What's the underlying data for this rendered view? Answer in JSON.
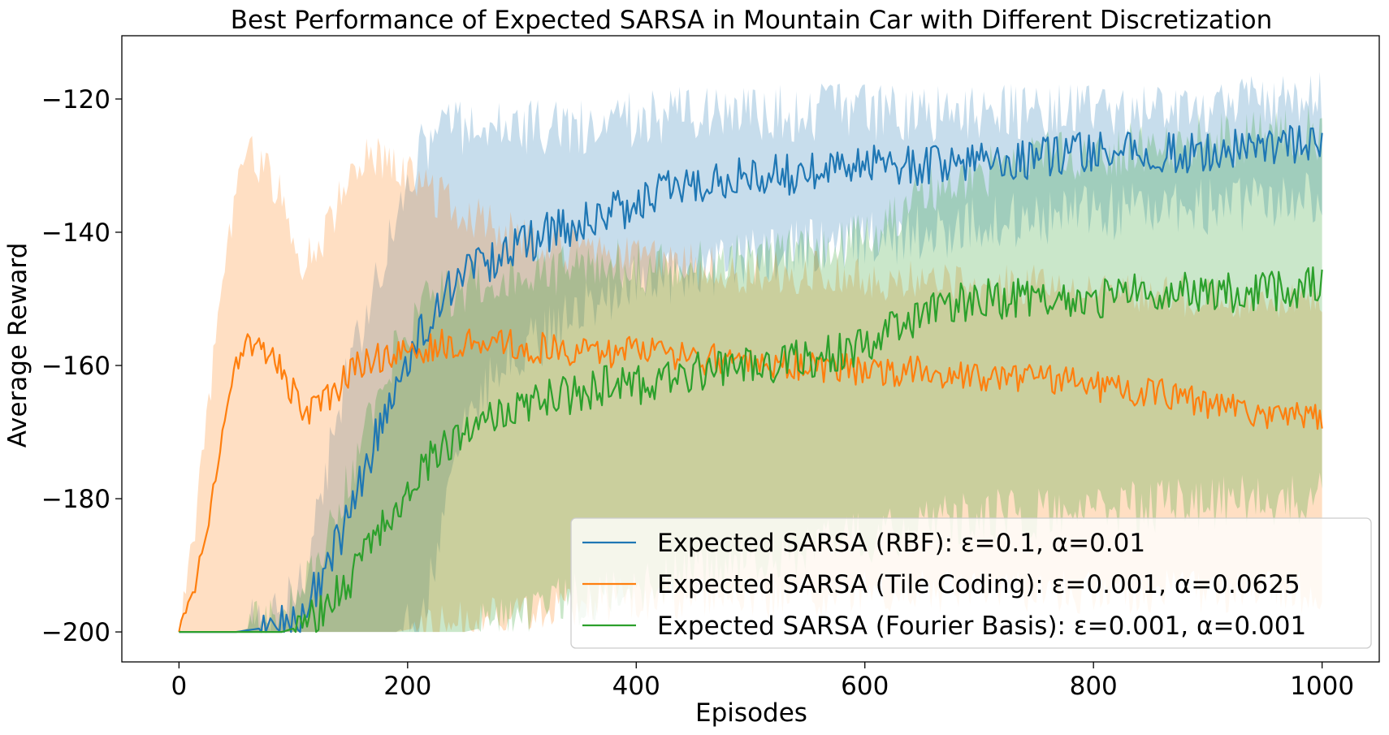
{
  "chart_data": {
    "type": "line",
    "title": "Best Performance of Expected SARSA in Mountain Car with Different Discretization",
    "xlabel": "Episodes",
    "ylabel": "Average Reward",
    "xlim": [
      -50,
      1050
    ],
    "ylim": [
      -204.5,
      -110.5
    ],
    "xticks": [
      0,
      200,
      400,
      600,
      800,
      1000
    ],
    "yticks": [
      -200,
      -180,
      -160,
      -140,
      -120
    ],
    "xtick_labels": [
      "0",
      "200",
      "400",
      "600",
      "800",
      "1000"
    ],
    "ytick_labels": [
      "−200",
      "−180",
      "−160",
      "−140",
      "−120"
    ],
    "grid": false,
    "legend_position": "lower-right",
    "series": [
      {
        "name": "Expected SARSA (RBF): ε=0.1, α=0.01",
        "color": "#1f77b4",
        "band_color": "#1f77b4",
        "x": [
          0,
          50,
          90,
          110,
          130,
          150,
          170,
          190,
          210,
          230,
          250,
          275,
          300,
          325,
          350,
          375,
          400,
          425,
          450,
          475,
          500,
          550,
          600,
          650,
          700,
          750,
          800,
          850,
          900,
          950,
          1000
        ],
        "y": [
          -200,
          -200,
          -199,
          -197,
          -190,
          -182,
          -172,
          -162,
          -156,
          -150,
          -146,
          -144,
          -142,
          -140,
          -139,
          -137,
          -136,
          -134,
          -133,
          -132,
          -132,
          -131,
          -130,
          -130,
          -129,
          -129,
          -128,
          -128,
          -128,
          -127,
          -126
        ],
        "band_low": [
          -200,
          -200,
          -200,
          -200,
          -200,
          -200,
          -200,
          -200,
          -198,
          -185,
          -170,
          -162,
          -158,
          -155,
          -152,
          -150,
          -148,
          -147,
          -146,
          -145,
          -144,
          -142,
          -141,
          -140,
          -139,
          -138,
          -137,
          -137,
          -136,
          -136,
          -135
        ],
        "band_high": [
          -200,
          -200,
          -198,
          -190,
          -175,
          -160,
          -148,
          -138,
          -128,
          -125,
          -124,
          -124,
          -124,
          -124,
          -124,
          -123,
          -123,
          -123,
          -122,
          -122,
          -122,
          -122,
          -122,
          -122,
          -122,
          -122,
          -122,
          -122,
          -121,
          -121,
          -120
        ],
        "noise": 3.2
      },
      {
        "name": "Expected SARSA (Tile Coding): ε=0.001, α=0.0625",
        "color": "#ff7f0e",
        "band_color": "#ff7f0e",
        "x": [
          0,
          10,
          20,
          30,
          40,
          50,
          60,
          75,
          90,
          110,
          130,
          150,
          170,
          190,
          220,
          260,
          300,
          350,
          400,
          450,
          500,
          550,
          600,
          650,
          700,
          750,
          800,
          850,
          900,
          950,
          1000
        ],
        "y": [
          -200,
          -196,
          -188,
          -178,
          -167,
          -161,
          -157,
          -158,
          -161,
          -167,
          -165,
          -161,
          -159,
          -158,
          -157,
          -156,
          -157,
          -158,
          -158,
          -159,
          -159,
          -160,
          -161,
          -161,
          -162,
          -162,
          -163,
          -164,
          -166,
          -167,
          -168
        ],
        "band_low": [
          -200,
          -200,
          -200,
          -200,
          -200,
          -200,
          -200,
          -200,
          -200,
          -200,
          -200,
          -200,
          -200,
          -200,
          -199,
          -198,
          -197,
          -196,
          -195,
          -195,
          -195,
          -195,
          -194,
          -194,
          -194,
          -194,
          -194,
          -194,
          -194,
          -194,
          -194
        ],
        "band_high": [
          -200,
          -190,
          -175,
          -160,
          -145,
          -135,
          -128,
          -130,
          -135,
          -145,
          -140,
          -130,
          -128,
          -130,
          -134,
          -138,
          -141,
          -143,
          -144,
          -145,
          -146,
          -146,
          -147,
          -147,
          -148,
          -148,
          -149,
          -149,
          -150,
          -150,
          -150
        ],
        "noise": 2.4
      },
      {
        "name": "Expected SARSA (Fourier Basis): ε=0.001, α=0.001",
        "color": "#2ca02c",
        "band_color": "#2ca02c",
        "x": [
          0,
          50,
          90,
          110,
          130,
          150,
          170,
          190,
          210,
          230,
          250,
          275,
          300,
          325,
          350,
          375,
          400,
          425,
          450,
          475,
          500,
          550,
          600,
          650,
          700,
          750,
          800,
          850,
          900,
          950,
          1000
        ],
        "y": [
          -200,
          -200,
          -200,
          -199,
          -196,
          -192,
          -186,
          -181,
          -176,
          -172,
          -170,
          -167,
          -166,
          -165,
          -164,
          -163,
          -163,
          -162,
          -161,
          -160,
          -160,
          -159,
          -157,
          -152,
          -150,
          -150,
          -150,
          -149,
          -149,
          -149,
          -148
        ],
        "band_low": [
          -200,
          -200,
          -200,
          -200,
          -200,
          -200,
          -200,
          -200,
          -200,
          -200,
          -200,
          -199,
          -198,
          -196,
          -195,
          -194,
          -193,
          -192,
          -191,
          -190,
          -189,
          -188,
          -186,
          -184,
          -183,
          -182,
          -182,
          -181,
          -181,
          -180,
          -180
        ],
        "band_high": [
          -200,
          -200,
          -198,
          -194,
          -186,
          -176,
          -166,
          -158,
          -152,
          -149,
          -148,
          -147,
          -146,
          -146,
          -146,
          -145,
          -145,
          -145,
          -145,
          -144,
          -144,
          -143,
          -141,
          -135,
          -131,
          -129,
          -128,
          -127,
          -126,
          -126,
          -125
        ],
        "noise": 3.0
      }
    ]
  }
}
